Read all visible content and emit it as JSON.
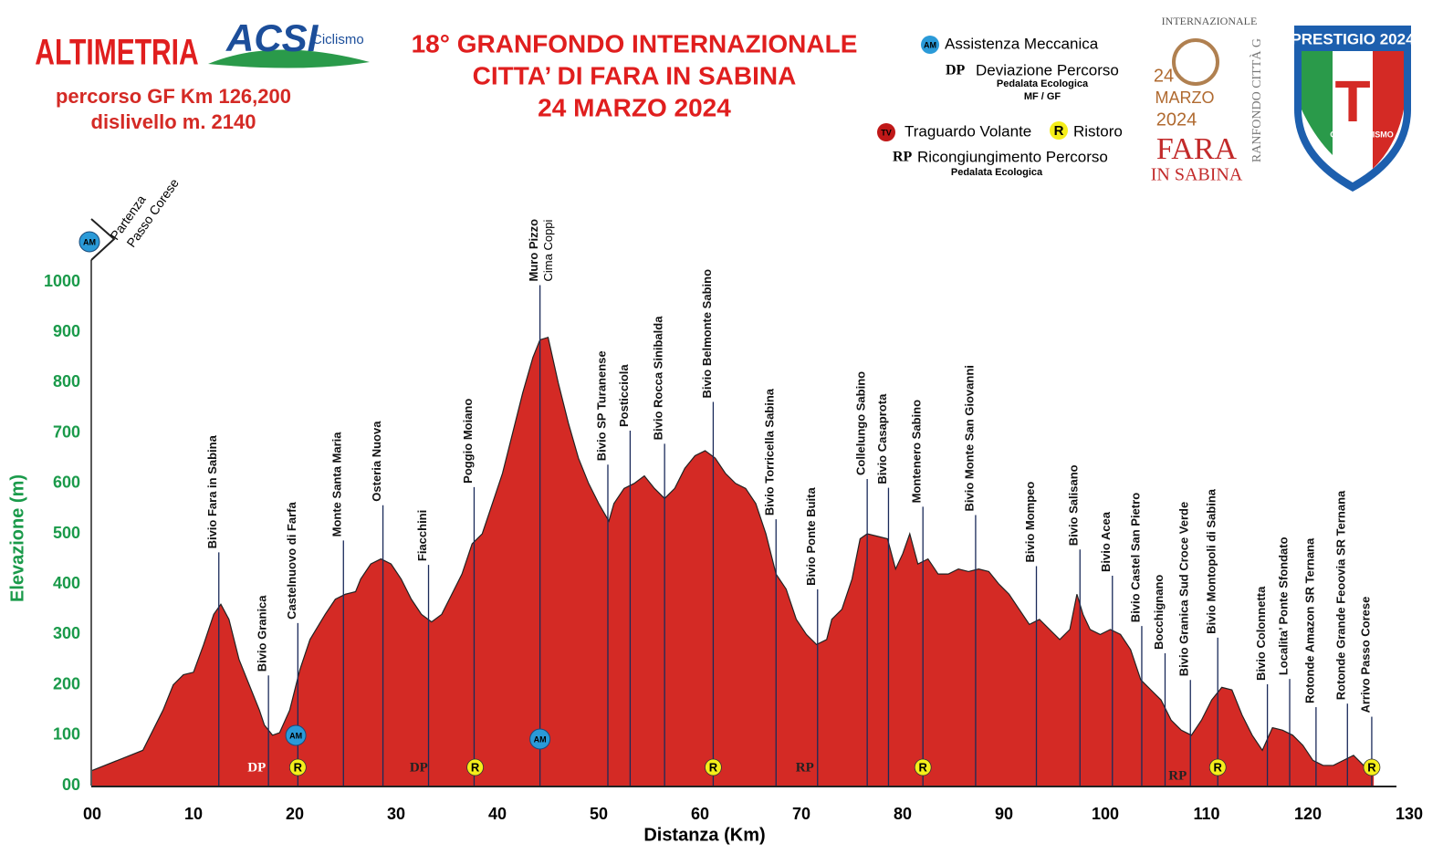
{
  "header": {
    "left_title": "ALTIMETRIA",
    "route_length": "percorso GF  Km 126,200",
    "climb": "dislivello m. 2140",
    "acsi": "ACSI",
    "acsi_sub": "Ciclismo",
    "title_lines": [
      "18° GRANFONDO INTERNAZIONALE",
      "CITTA’ DI FARA IN SABINA",
      "24 MARZO 2024"
    ]
  },
  "legend": {
    "am_icon": "AM",
    "am": "Assistenza Meccanica",
    "dp_icon": "DP",
    "dp": "Deviazione Percorso",
    "dp_sub1": "Pedalata Ecologica",
    "dp_sub2": "MF / GF",
    "tv_icon": "TV",
    "tv": "Traguardo Volante",
    "r_icon": "R",
    "r": "Ristoro",
    "rp_icon": "RP",
    "rp": "Ricongiungimento Percorso",
    "rp_sub": "Pedalata Ecologica"
  },
  "logo_fara": {
    "top": "INTERNAZIONALE",
    "day": "24",
    "month": "MARZO",
    "year": "2024",
    "fara": "FARA",
    "sabina": "IN SABINA",
    "side": "RANFONDO CITTÀ G"
  },
  "logo_prestigio": {
    "title": "PRESTIGIO 2024",
    "letter": "T",
    "band": "CICLOTURISMO"
  },
  "chart_data": {
    "type": "area",
    "xlabel": "Distanza (Km)",
    "ylabel": "Elevazione (m)",
    "color": "#d42a25",
    "x": [
      0,
      5,
      7,
      8,
      9,
      10,
      11,
      12,
      12.7,
      13.5,
      14.5,
      15.5,
      16.5,
      17,
      17.8,
      18.5,
      19.5,
      20.5,
      21.5,
      23,
      24,
      25,
      26,
      26.5,
      27.5,
      28.5,
      29.5,
      30.5,
      31.5,
      32.5,
      33.5,
      34.5,
      35.5,
      36.5,
      37.5,
      38.5,
      39.5,
      40.5,
      41.5,
      42.5,
      43.5,
      44.2,
      45,
      46,
      47,
      48,
      49,
      50,
      51,
      51.5,
      52.5,
      53.5,
      54.5,
      55.5,
      56.5,
      57.5,
      58.5,
      59.5,
      60.5,
      61.5,
      62.5,
      63.5,
      64.5,
      65.5,
      66.5,
      67.5,
      68.5,
      69.5,
      70.5,
      71.5,
      72.5,
      73,
      74,
      75,
      75.8,
      76.5,
      77.5,
      78.5,
      79.3,
      80,
      80.7,
      81.5,
      82.5,
      83.5,
      84.5,
      85.5,
      86.5,
      87.5,
      88.5,
      89.5,
      90.5,
      91.5,
      92.5,
      93.5,
      94.5,
      95.5,
      96.5,
      97.2,
      97.8,
      98.5,
      99.5,
      100.5,
      101.5,
      102.5,
      103.5,
      104.5,
      105.5,
      106.5,
      107.5,
      108.5,
      109.5,
      110.5,
      111.5,
      112.5,
      113.5,
      114.5,
      115.5,
      116.5,
      117.5,
      118.5,
      119.5,
      120.5,
      121.5,
      122.5,
      123.5,
      124.5,
      125.5,
      126.5
    ],
    "values": [
      30,
      70,
      150,
      200,
      220,
      225,
      280,
      340,
      360,
      330,
      250,
      200,
      150,
      120,
      100,
      105,
      150,
      230,
      290,
      340,
      370,
      380,
      385,
      410,
      440,
      450,
      440,
      410,
      370,
      340,
      325,
      340,
      380,
      420,
      480,
      500,
      560,
      620,
      700,
      780,
      850,
      885,
      890,
      800,
      720,
      650,
      600,
      560,
      525,
      560,
      590,
      600,
      615,
      590,
      570,
      590,
      630,
      655,
      665,
      650,
      620,
      600,
      590,
      560,
      500,
      420,
      390,
      330,
      300,
      280,
      290,
      330,
      350,
      410,
      490,
      500,
      495,
      490,
      430,
      460,
      500,
      440,
      450,
      420,
      420,
      430,
      425,
      430,
      425,
      400,
      380,
      350,
      320,
      330,
      310,
      290,
      310,
      380,
      340,
      310,
      300,
      310,
      300,
      270,
      210,
      190,
      170,
      130,
      110,
      100,
      130,
      170,
      195,
      190,
      140,
      100,
      70,
      115,
      110,
      100,
      80,
      50,
      40,
      40,
      50,
      60,
      40,
      25
    ],
    "xlim": [
      0,
      130
    ],
    "ylim": [
      0,
      1000
    ],
    "xticks": [
      {
        "value": 0,
        "label": "00"
      },
      10,
      20,
      30,
      40,
      50,
      60,
      70,
      80,
      90,
      100,
      110,
      120,
      130
    ],
    "yticks": [
      {
        "value": 0,
        "label": "00"
      },
      100,
      200,
      300,
      400,
      500,
      600,
      700,
      800,
      900,
      1000
    ],
    "start": {
      "label": "Partenza",
      "label2": "Passo Corese"
    },
    "waypoints": [
      {
        "label": "Bivio Fara in Sabina",
        "x": 12.5
      },
      {
        "label": "Bivio Granica",
        "x": 17.4
      },
      {
        "label": "Castelnuovo di Farfa",
        "x": 20.3
      },
      {
        "label": "Monte Santa Maria",
        "x": 24.8
      },
      {
        "label": "Osteria Nuova",
        "x": 28.7
      },
      {
        "label": "Fiacchini",
        "x": 33.2
      },
      {
        "label": "Poggio Moiano",
        "x": 37.7
      },
      {
        "label": "Muro Pizzo",
        "sub": "Cima Coppi",
        "x": 44.2
      },
      {
        "label": "Bivio SP Turanense",
        "x": 50.9
      },
      {
        "label": "Posticciola",
        "x": 53.1
      },
      {
        "label": "Bivio Rocca  Sinibalda",
        "x": 56.5
      },
      {
        "label": "Bivio  Belmonte Sabino",
        "x": 61.3
      },
      {
        "label": "Bivio  Torricella  Sabina",
        "x": 67.5
      },
      {
        "label": "Bivio  Ponte Buita",
        "x": 71.6
      },
      {
        "label": "Collelungo  Sabino",
        "x": 76.5
      },
      {
        "label": "Bivio Casaprota",
        "x": 78.6
      },
      {
        "label": "Montenero Sabino",
        "x": 82.0
      },
      {
        "label": "Bivio Monte  San Giovanni",
        "x": 87.2
      },
      {
        "label": "Bivio Mompeo",
        "x": 93.2
      },
      {
        "label": "Bivio Salisano",
        "x": 97.5
      },
      {
        "label": "Bivio  Acea",
        "x": 100.7
      },
      {
        "label": "Bivio Castel San Pietro",
        "x": 103.6
      },
      {
        "label": "Bocchignano",
        "x": 105.9
      },
      {
        "label": "Bivio  Granica  Sud Croce  Verde",
        "x": 108.4
      },
      {
        "label": "Bivio Montopoli di  Sabina",
        "x": 111.1
      },
      {
        "label": "Bivio Colonnetta",
        "x": 116.0
      },
      {
        "label": "Localita’ Ponte Sfondato",
        "x": 118.2
      },
      {
        "label": "Rotonde  Amazon SR Ternana",
        "x": 120.8
      },
      {
        "label": "Rotonde  Grande Feoovia  SR Ternana",
        "x": 123.9
      },
      {
        "label": "Arrivo Passo Corese",
        "x": 126.3
      }
    ],
    "markers": [
      {
        "label": "AM",
        "x": 0
      },
      {
        "label": "DP",
        "x": 17.5
      },
      {
        "label": "R",
        "x": 20.3
      },
      {
        "label": "AM",
        "x": 20.1
      },
      {
        "label": "DP",
        "x": 33.5
      },
      {
        "label": "R",
        "x": 37.8
      },
      {
        "label": "AM",
        "x": 44.2
      },
      {
        "label": "R",
        "x": 61.3
      },
      {
        "label": "RP",
        "x": 71.6
      },
      {
        "label": "R",
        "x": 82.0
      },
      {
        "label": "RP",
        "x": 108.4
      },
      {
        "label": "R",
        "x": 111.1
      },
      {
        "label": "R",
        "x": 126.3
      }
    ]
  }
}
